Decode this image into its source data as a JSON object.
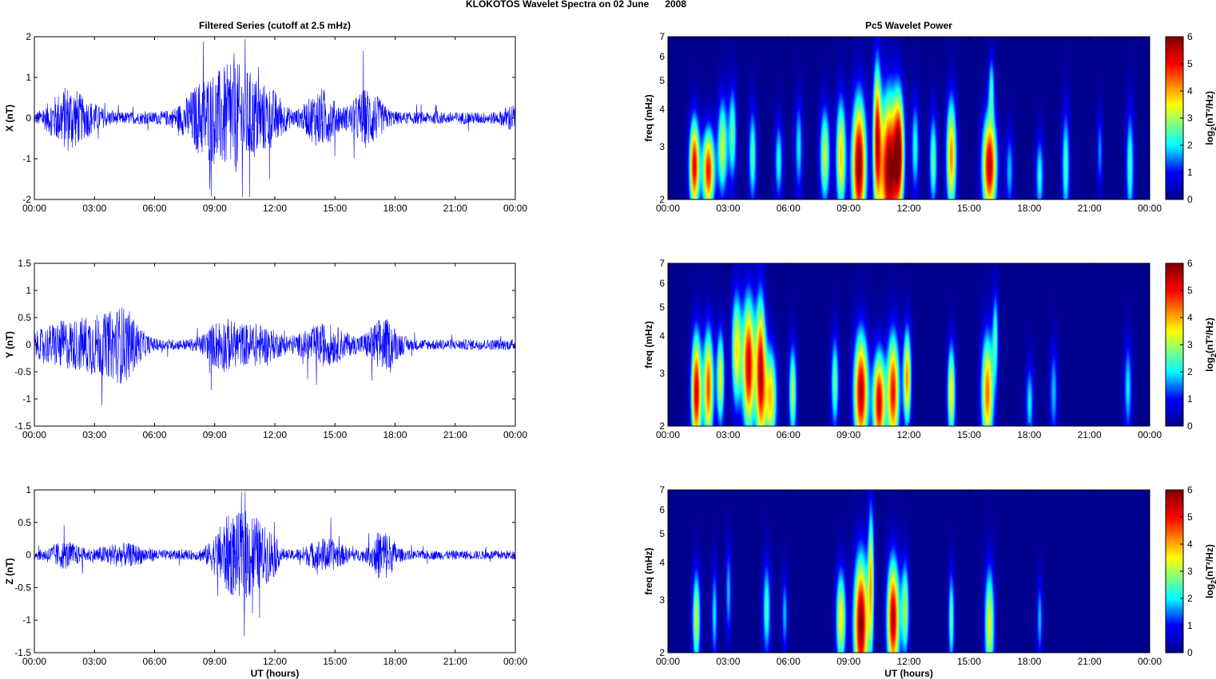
{
  "figure_title": "KLOKOTOS Wavelet Spectra on 02 June      2008",
  "colors": {
    "trace": "#0000ff",
    "spectrum_background": "#00008f",
    "colormap": [
      "#00008f",
      "#0000ff",
      "#00ffff",
      "#ffff00",
      "#ff0000",
      "#800000"
    ]
  },
  "chart_data": [
    {
      "type": "line",
      "title": "Filtered Series (cutoff at 2.5 mHz)",
      "ylabel": "X (nT)",
      "xlabel": "",
      "xlim": [
        "00:00",
        "24:00"
      ],
      "xticks": [
        "00:00",
        "03:00",
        "06:00",
        "09:00",
        "12:00",
        "15:00",
        "18:00",
        "21:00",
        "00:00"
      ],
      "ylim": [
        -2,
        2
      ],
      "yticks": [
        "-2",
        "-1",
        "0",
        "1",
        "2"
      ],
      "series": [
        {
          "color": "#0000ff",
          "base_amplitude": 0.15,
          "bursts": [
            [
              1.1,
              0.6,
              0.35
            ],
            [
              1.8,
              0.5,
              0.5
            ],
            [
              2.6,
              0.8,
              0.3
            ],
            [
              8.7,
              1.2,
              0.9
            ],
            [
              10.0,
              0.8,
              0.8
            ],
            [
              11.0,
              0.8,
              0.7
            ],
            [
              12.0,
              0.6,
              0.4
            ],
            [
              14.3,
              0.8,
              0.6
            ],
            [
              16.6,
              0.8,
              0.6
            ],
            [
              23.8,
              0.4,
              0.2
            ]
          ]
        }
      ]
    },
    {
      "type": "line",
      "title": "",
      "ylabel": "Y (nT)",
      "xlabel": "",
      "xlim": [
        "00:00",
        "24:00"
      ],
      "xticks": [
        "00:00",
        "03:00",
        "06:00",
        "09:00",
        "12:00",
        "15:00",
        "18:00",
        "21:00",
        "00:00"
      ],
      "ylim": [
        -1.5,
        1.5
      ],
      "yticks": [
        "-1.5",
        "-1",
        "-0.5",
        "0",
        "0.5",
        "1",
        "1.5"
      ],
      "series": [
        {
          "color": "#0000ff",
          "base_amplitude": 0.1,
          "bursts": [
            [
              1.5,
              1.5,
              0.35
            ],
            [
              3.0,
              0.8,
              0.3
            ],
            [
              4.4,
              0.9,
              0.6
            ],
            [
              9.3,
              0.8,
              0.35
            ],
            [
              11.0,
              1.3,
              0.3
            ],
            [
              14.5,
              1.2,
              0.3
            ],
            [
              17.4,
              0.8,
              0.4
            ]
          ]
        }
      ]
    },
    {
      "type": "line",
      "title": "",
      "ylabel": "Z (nT)",
      "xlabel": "UT (hours)",
      "xlim": [
        "00:00",
        "24:00"
      ],
      "xticks": [
        "00:00",
        "03:00",
        "06:00",
        "09:00",
        "12:00",
        "15:00",
        "18:00",
        "21:00",
        "00:00"
      ],
      "ylim": [
        -1.5,
        1
      ],
      "yticks": [
        "-1.5",
        "-1",
        "-0.5",
        "0",
        "0.5",
        "1"
      ],
      "series": [
        {
          "color": "#0000ff",
          "base_amplitude": 0.07,
          "bursts": [
            [
              1.5,
              0.8,
              0.15
            ],
            [
              4.4,
              1.3,
              0.12
            ],
            [
              9.8,
              0.9,
              0.55
            ],
            [
              10.9,
              0.6,
              0.5
            ],
            [
              11.8,
              0.4,
              0.3
            ],
            [
              14.5,
              1.0,
              0.2
            ],
            [
              17.4,
              0.6,
              0.35
            ]
          ]
        }
      ]
    },
    {
      "type": "heatmap",
      "title": "Pc5 Wavelet Power",
      "ylabel": "freq (mHz)",
      "xlabel": "",
      "xlim": [
        "00:00",
        "24:00"
      ],
      "xticks": [
        "00:00",
        "03:00",
        "06:00",
        "09:00",
        "12:00",
        "15:00",
        "18:00",
        "21:00",
        "00:00"
      ],
      "ylim": [
        2,
        7
      ],
      "yscale": "log",
      "yticks": [
        "2",
        "3",
        "4",
        "5",
        "6",
        "7"
      ],
      "colorbar": {
        "label": "log2(nT²/Hz)",
        "range": [
          0,
          6
        ],
        "ticks": [
          "0",
          "1",
          "2",
          "3",
          "4",
          "5",
          "6"
        ]
      },
      "blobs": [
        [
          1.3,
          2.6,
          0.25,
          0.28,
          5.2
        ],
        [
          2.0,
          2.5,
          0.3,
          0.25,
          5.0
        ],
        [
          2.7,
          3.0,
          0.25,
          0.3,
          3.2
        ],
        [
          3.2,
          3.3,
          0.2,
          0.3,
          2.6
        ],
        [
          4.2,
          2.8,
          0.2,
          0.3,
          2.5
        ],
        [
          5.5,
          2.7,
          0.2,
          0.25,
          2.2
        ],
        [
          6.5,
          3.0,
          0.2,
          0.3,
          2.0
        ],
        [
          7.8,
          2.8,
          0.25,
          0.3,
          3.2
        ],
        [
          8.6,
          2.8,
          0.25,
          0.35,
          3.8
        ],
        [
          9.5,
          2.6,
          0.35,
          0.4,
          6.0
        ],
        [
          10.4,
          3.2,
          0.2,
          0.45,
          4.8
        ],
        [
          11.0,
          2.5,
          0.45,
          0.45,
          6.0
        ],
        [
          11.5,
          2.9,
          0.25,
          0.35,
          4.8
        ],
        [
          12.3,
          3.0,
          0.2,
          0.3,
          2.2
        ],
        [
          13.2,
          2.7,
          0.2,
          0.3,
          2.6
        ],
        [
          14.1,
          2.8,
          0.25,
          0.35,
          4.2
        ],
        [
          16.0,
          2.6,
          0.35,
          0.3,
          5.6
        ],
        [
          16.1,
          4.8,
          0.15,
          0.2,
          2.0
        ],
        [
          17.0,
          2.5,
          0.2,
          0.25,
          1.8
        ],
        [
          18.5,
          2.4,
          0.2,
          0.25,
          2.2
        ],
        [
          19.8,
          2.6,
          0.2,
          0.35,
          2.4
        ],
        [
          21.5,
          2.9,
          0.15,
          0.25,
          1.6
        ],
        [
          23.0,
          2.6,
          0.2,
          0.35,
          2.4
        ]
      ]
    },
    {
      "type": "heatmap",
      "title": "",
      "ylabel": "freq (mHz)",
      "xlabel": "",
      "xlim": [
        "00:00",
        "24:00"
      ],
      "xticks": [
        "00:00",
        "03:00",
        "06:00",
        "09:00",
        "12:00",
        "15:00",
        "18:00",
        "21:00",
        "00:00"
      ],
      "ylim": [
        2,
        7
      ],
      "yscale": "log",
      "yticks": [
        "2",
        "3",
        "4",
        "5",
        "6",
        "7"
      ],
      "colorbar": {
        "label": "log2(nT²/Hz)",
        "range": [
          0,
          6
        ],
        "ticks": [
          "0",
          "1",
          "2",
          "3",
          "4",
          "5",
          "6"
        ]
      },
      "blobs": [
        [
          1.4,
          2.6,
          0.25,
          0.35,
          5.4
        ],
        [
          2.0,
          2.7,
          0.25,
          0.35,
          4.6
        ],
        [
          2.6,
          2.9,
          0.2,
          0.3,
          3.4
        ],
        [
          3.4,
          3.6,
          0.25,
          0.35,
          3.6
        ],
        [
          4.0,
          3.2,
          0.3,
          0.4,
          5.4
        ],
        [
          4.6,
          3.0,
          0.25,
          0.45,
          5.4
        ],
        [
          5.1,
          2.5,
          0.3,
          0.3,
          3.8
        ],
        [
          6.2,
          2.6,
          0.2,
          0.3,
          3.0
        ],
        [
          8.3,
          2.8,
          0.2,
          0.3,
          2.6
        ],
        [
          9.6,
          2.6,
          0.35,
          0.35,
          5.6
        ],
        [
          10.5,
          2.4,
          0.3,
          0.3,
          5.4
        ],
        [
          11.2,
          2.6,
          0.3,
          0.35,
          5.0
        ],
        [
          11.9,
          2.9,
          0.2,
          0.3,
          4.2
        ],
        [
          14.1,
          2.6,
          0.2,
          0.3,
          3.6
        ],
        [
          15.9,
          2.6,
          0.3,
          0.35,
          4.4
        ],
        [
          16.3,
          4.0,
          0.15,
          0.3,
          2.2
        ],
        [
          18.0,
          2.4,
          0.2,
          0.25,
          2.0
        ],
        [
          19.2,
          2.6,
          0.2,
          0.3,
          1.8
        ],
        [
          22.9,
          2.7,
          0.2,
          0.3,
          2.0
        ]
      ]
    },
    {
      "type": "heatmap",
      "title": "",
      "ylabel": "freq (mHz)",
      "xlabel": "UT (hours)",
      "xlim": [
        "00:00",
        "24:00"
      ],
      "xticks": [
        "00:00",
        "03:00",
        "06:00",
        "09:00",
        "12:00",
        "15:00",
        "18:00",
        "21:00",
        "00:00"
      ],
      "ylim": [
        2,
        7
      ],
      "yscale": "log",
      "yticks": [
        "2",
        "3",
        "4",
        "5",
        "6",
        "7"
      ],
      "colorbar": {
        "label": "log2(nT²/Hz)",
        "range": [
          0,
          6
        ],
        "ticks": [
          "0",
          "1",
          "2",
          "3",
          "4",
          "5",
          "6"
        ]
      },
      "blobs": [
        [
          1.4,
          2.6,
          0.2,
          0.3,
          3.2
        ],
        [
          2.3,
          2.7,
          0.15,
          0.3,
          2.0
        ],
        [
          3.0,
          3.2,
          0.15,
          0.3,
          1.8
        ],
        [
          4.9,
          2.8,
          0.2,
          0.3,
          2.4
        ],
        [
          5.8,
          2.7,
          0.15,
          0.25,
          1.8
        ],
        [
          8.6,
          2.6,
          0.25,
          0.3,
          3.6
        ],
        [
          9.6,
          2.5,
          0.35,
          0.4,
          6.0
        ],
        [
          10.1,
          3.5,
          0.15,
          0.45,
          3.6
        ],
        [
          11.2,
          2.6,
          0.3,
          0.35,
          5.6
        ],
        [
          11.8,
          2.8,
          0.2,
          0.3,
          3.0
        ],
        [
          14.1,
          2.6,
          0.15,
          0.3,
          2.6
        ],
        [
          16.0,
          2.5,
          0.25,
          0.35,
          3.4
        ],
        [
          18.5,
          2.6,
          0.15,
          0.25,
          1.8
        ]
      ]
    }
  ]
}
